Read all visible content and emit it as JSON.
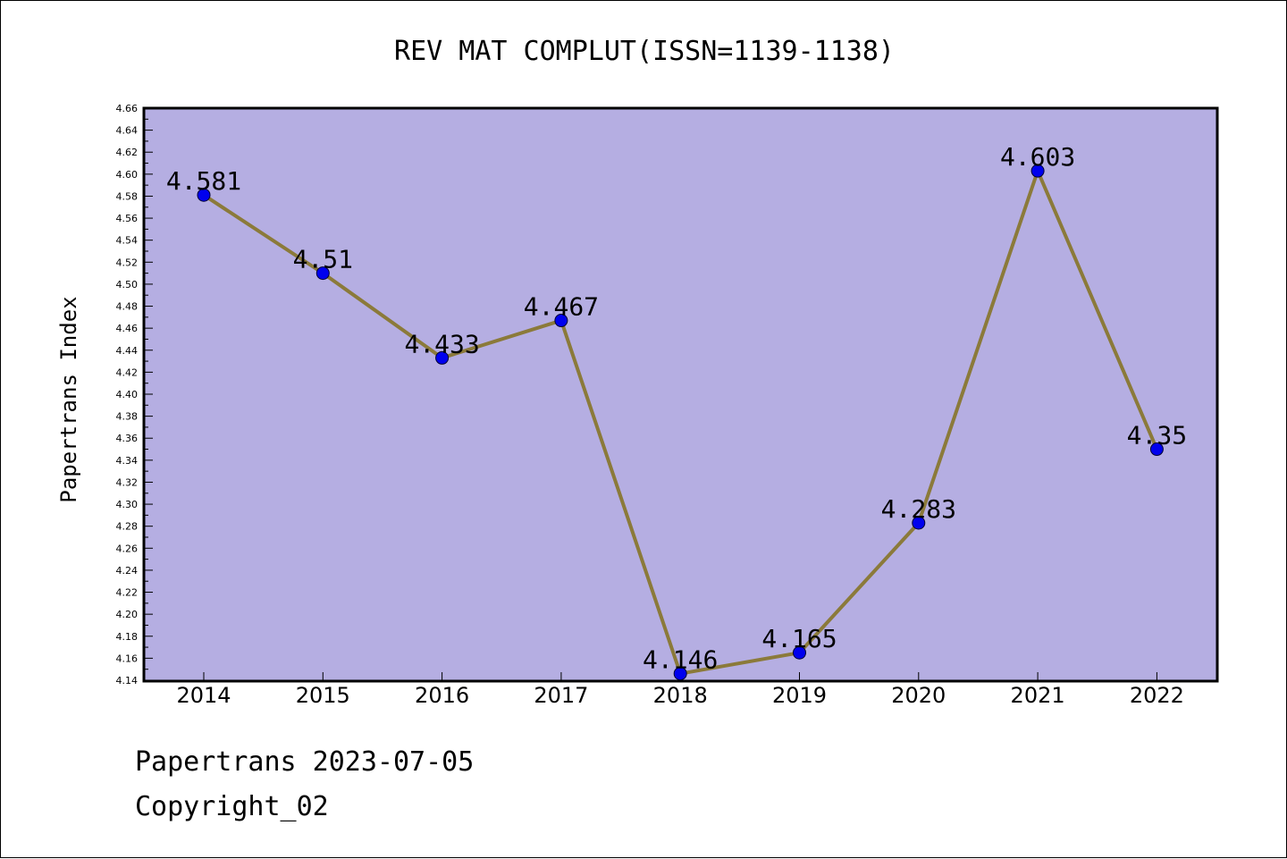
{
  "chart_data": {
    "type": "line",
    "title": "REV MAT COMPLUT(ISSN=1139-1138)",
    "xlabel": "",
    "ylabel": "Papertrans Index",
    "categories": [
      "2014",
      "2015",
      "2016",
      "2017",
      "2018",
      "2019",
      "2020",
      "2021",
      "2022"
    ],
    "series": [
      {
        "values": [
          4.581,
          4.51,
          4.433,
          4.467,
          4.146,
          4.165,
          4.283,
          4.603,
          4.35
        ],
        "labels": [
          "4.581",
          "4.51",
          "4.433",
          "4.467",
          "4.146",
          "4.165",
          "4.283",
          "4.603",
          "4.35"
        ]
      }
    ],
    "ylim": [
      4.14,
      4.66
    ],
    "yticks": [
      "4.14",
      "4.16",
      "4.18",
      "4.20",
      "4.22",
      "4.24",
      "4.26",
      "4.28",
      "4.30",
      "4.32",
      "4.34",
      "4.36",
      "4.38",
      "4.40",
      "4.42",
      "4.44",
      "4.46",
      "4.48",
      "4.50",
      "4.52",
      "4.54",
      "4.56",
      "4.58",
      "4.60",
      "4.62",
      "4.64",
      "4.66"
    ],
    "grid": false,
    "legend": "none",
    "colors": {
      "plot_background": "#b5aee2",
      "line": "#8b7a3a",
      "marker": "#0000ee"
    }
  },
  "footer": {
    "date_line": "Papertrans 2023-07-05",
    "copyright_line": "Copyright_02"
  }
}
